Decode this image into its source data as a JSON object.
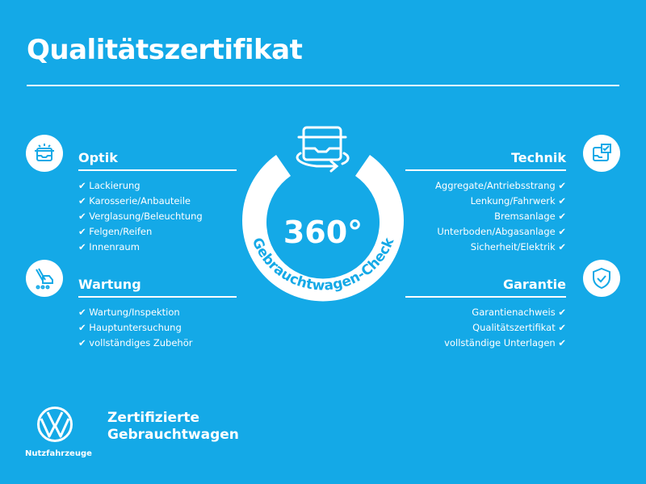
{
  "title": "Qualitätszertifikat",
  "check_mark": "✔",
  "badge": {
    "number": "360°",
    "caption": "Gebrauchtwagen-Check"
  },
  "sections": {
    "optik": {
      "heading": "Optik",
      "icon": "car-front-icon",
      "items": [
        "Lackierung",
        "Karosserie/Anbauteile",
        "Verglasung/Beleuchtung",
        "Felgen/Reifen",
        "Innenraum"
      ]
    },
    "wartung": {
      "heading": "Wartung",
      "icon": "service-tool-icon",
      "items": [
        "Wartung/Inspektion",
        "Hauptuntersuchung",
        "vollständiges Zubehör"
      ]
    },
    "technik": {
      "heading": "Technik",
      "icon": "car-checklist-icon",
      "items": [
        "Aggregate/Antriebsstrang",
        "Lenkung/Fahrwerk",
        "Bremsanlage",
        "Unterboden/Abgasanlage",
        "Sicherheit/Elektrik"
      ]
    },
    "garantie": {
      "heading": "Garantie",
      "icon": "shield-check-icon",
      "items": [
        "Garantienachweis",
        "Qualitätszertifikat",
        "vollständige Unterlagen"
      ]
    }
  },
  "footer": {
    "brand": "Nutzfahrzeuge",
    "line1": "Zertifizierte",
    "line2": "Gebrauchtwagen"
  },
  "colors": {
    "background": "#14a9e7",
    "foreground": "#ffffff"
  }
}
